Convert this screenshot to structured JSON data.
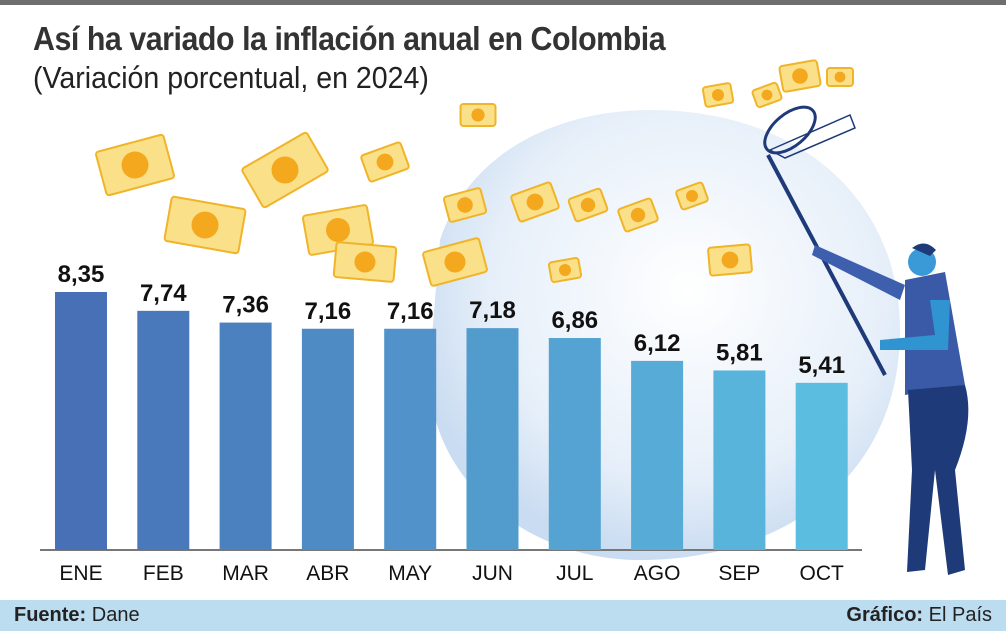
{
  "title": "Así ha variado la inflación anual en Colombia",
  "subtitle": "(Variación porcentual, en 2024)",
  "footer": {
    "source_label": "Fuente:",
    "source_value": "Dane",
    "credit_label": "Gráfico:",
    "credit_value": "El País"
  },
  "colors": {
    "bar_start": "#4770b6",
    "bar_end": "#5bbde0",
    "title": "#333333",
    "footer_bg": "#bcdcf0",
    "bill": "#f7c948"
  },
  "chart_data": {
    "type": "bar",
    "title": "Así ha variado la inflación anual en Colombia",
    "subtitle": "(Variación porcentual, en 2024)",
    "categories": [
      "ENE",
      "FEB",
      "MAR",
      "ABR",
      "MAY",
      "JUN",
      "JUL",
      "AGO",
      "SEP",
      "OCT"
    ],
    "values": [
      8.35,
      7.74,
      7.36,
      7.16,
      7.16,
      7.18,
      6.86,
      6.12,
      5.81,
      5.41
    ],
    "labels": [
      "8,35",
      "7,74",
      "7,36",
      "7,16",
      "7,16",
      "7,18",
      "6,86",
      "6,12",
      "5,81",
      "5,41"
    ],
    "ylim": [
      0,
      9
    ],
    "grid": false,
    "yaxis_visible": false,
    "data_labels": "above bars"
  }
}
